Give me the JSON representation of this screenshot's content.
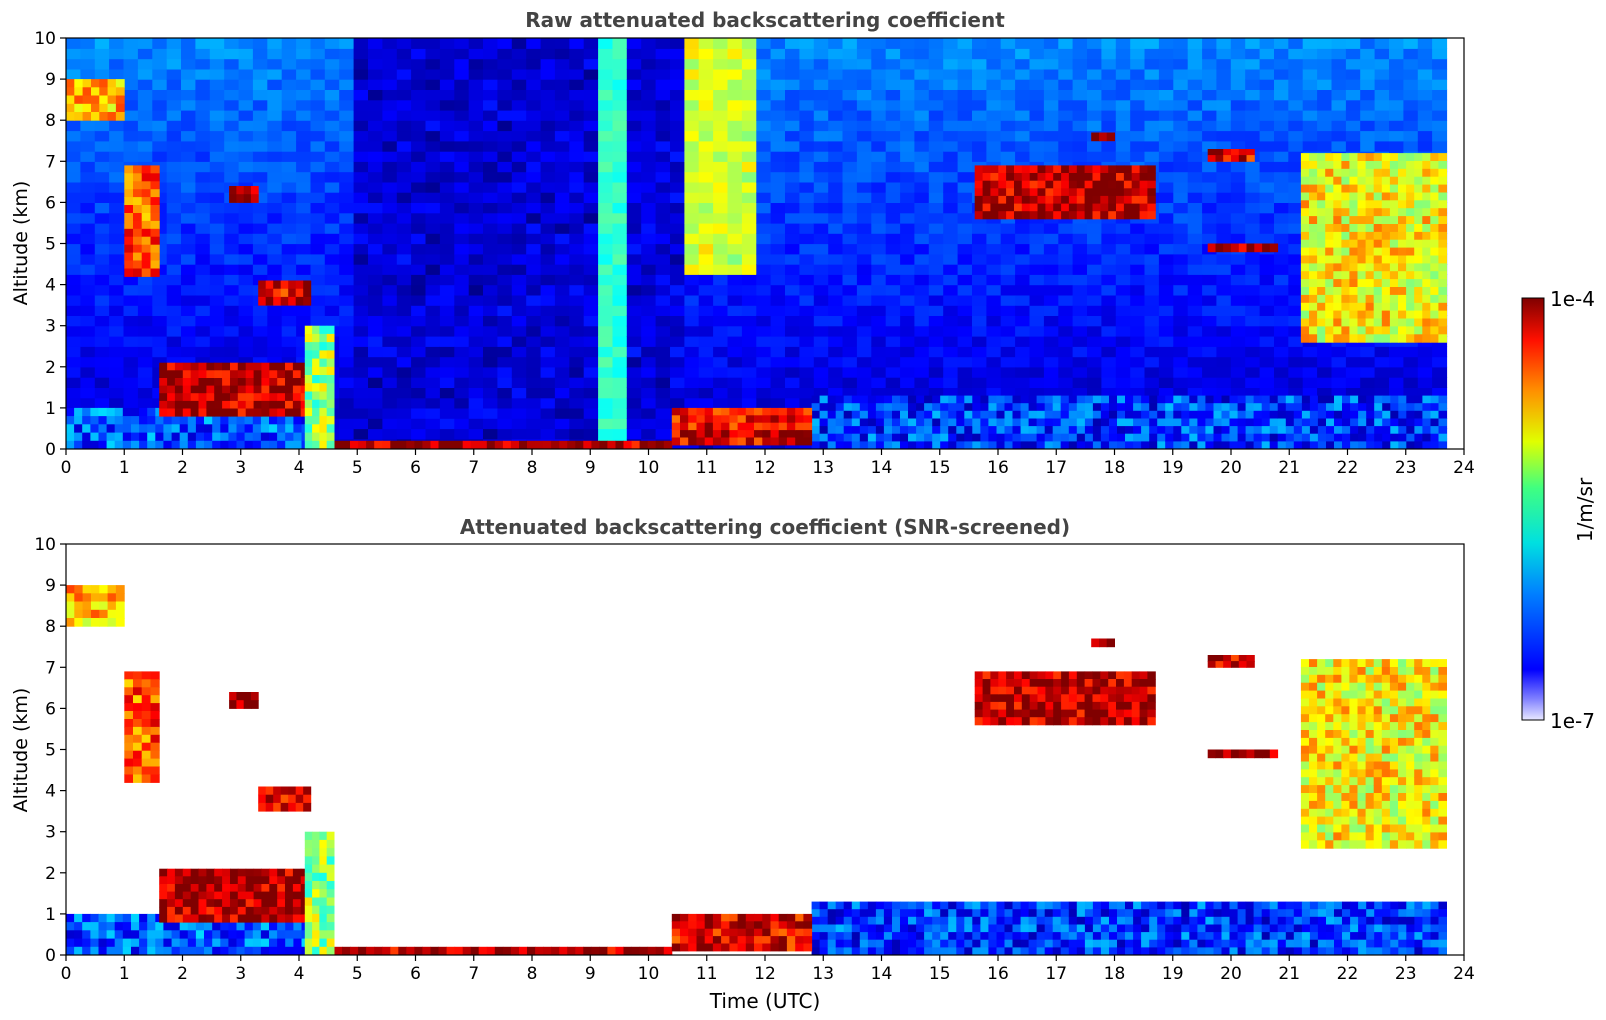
{
  "chart_data": [
    {
      "type": "heatmap",
      "title": "Raw attenuated backscattering coefficient",
      "xlabel": "",
      "ylabel": "Altitude (km)",
      "xlim": [
        0,
        24
      ],
      "ylim": [
        0,
        10
      ],
      "xticks": [
        "0",
        "1",
        "2",
        "3",
        "4",
        "5",
        "6",
        "7",
        "8",
        "9",
        "10",
        "11",
        "12",
        "13",
        "14",
        "15",
        "16",
        "17",
        "18",
        "19",
        "20",
        "21",
        "22",
        "23",
        "24"
      ],
      "yticks": [
        "0",
        "1",
        "2",
        "3",
        "4",
        "5",
        "6",
        "7",
        "8",
        "9",
        "10"
      ],
      "data_end_time": 23.7,
      "scale": "log",
      "features": [
        {
          "name": "boundary-layer-aerosol",
          "t": [
            0,
            4.6
          ],
          "alt": [
            0,
            1.0
          ],
          "level": 0.25
        },
        {
          "name": "boundary-layer-aerosol",
          "t": [
            12.8,
            23.7
          ],
          "alt": [
            0,
            1.3
          ],
          "level": 0.22
        },
        {
          "name": "surface-fog-layer",
          "t": [
            4.6,
            10.4
          ],
          "alt": [
            0,
            0.2
          ],
          "level": 0.95
        },
        {
          "name": "rising-low-cloud",
          "t": [
            10.4,
            12.8
          ],
          "alt": [
            0.1,
            1.0
          ],
          "level": 0.9
        },
        {
          "name": "cirrus-high",
          "t": [
            0,
            1.0
          ],
          "alt": [
            8.0,
            9.0
          ],
          "level": 0.7
        },
        {
          "name": "descending-cirrus",
          "t": [
            1.0,
            1.6
          ],
          "alt": [
            4.2,
            6.9
          ],
          "level": 0.8
        },
        {
          "name": "mid-cloud",
          "t": [
            2.8,
            3.3
          ],
          "alt": [
            6.0,
            6.4
          ],
          "level": 0.95
        },
        {
          "name": "mid-cloud",
          "t": [
            3.3,
            4.2
          ],
          "alt": [
            3.5,
            4.1
          ],
          "level": 0.9
        },
        {
          "name": "low-cloud",
          "t": [
            1.6,
            4.3
          ],
          "alt": [
            0.8,
            2.1
          ],
          "level": 0.95
        },
        {
          "name": "snow-column",
          "t": [
            4.1,
            4.6
          ],
          "alt": [
            0,
            3.0
          ],
          "level": 0.55
        },
        {
          "name": "mid-cloud",
          "t": [
            15.6,
            18.7
          ],
          "alt": [
            5.6,
            6.9
          ],
          "level": 0.95
        },
        {
          "name": "cloud-top",
          "t": [
            17.6,
            18.0
          ],
          "alt": [
            7.5,
            7.7
          ],
          "level": 0.95
        },
        {
          "name": "altostratus",
          "t": [
            19.6,
            20.8
          ],
          "alt": [
            4.8,
            5.0
          ],
          "level": 0.95
        },
        {
          "name": "mid-cloud",
          "t": [
            19.6,
            20.4
          ],
          "alt": [
            7.0,
            7.3
          ],
          "level": 0.9
        },
        {
          "name": "descending-cirrus",
          "t": [
            21.2,
            23.7
          ],
          "alt": [
            2.6,
            7.2
          ],
          "level": 0.65
        }
      ]
    },
    {
      "type": "heatmap",
      "title": "Attenuated backscattering coefficient (SNR-screened)",
      "xlabel": "Time (UTC)",
      "ylabel": "Altitude (km)",
      "xlim": [
        0,
        24
      ],
      "ylim": [
        0,
        10
      ],
      "xticks": [
        "0",
        "1",
        "2",
        "3",
        "4",
        "5",
        "6",
        "7",
        "8",
        "9",
        "10",
        "11",
        "12",
        "13",
        "14",
        "15",
        "16",
        "17",
        "18",
        "19",
        "20",
        "21",
        "22",
        "23",
        "24"
      ],
      "yticks": [
        "0",
        "1",
        "2",
        "3",
        "4",
        "5",
        "6",
        "7",
        "8",
        "9",
        "10"
      ],
      "data_end_time": 23.7,
      "scale": "log"
    }
  ],
  "colorbar": {
    "max_label": "1e-4",
    "min_label": "1e-7",
    "unit_label": "1/m/sr",
    "min_value": 1e-07,
    "max_value": 0.0001
  }
}
